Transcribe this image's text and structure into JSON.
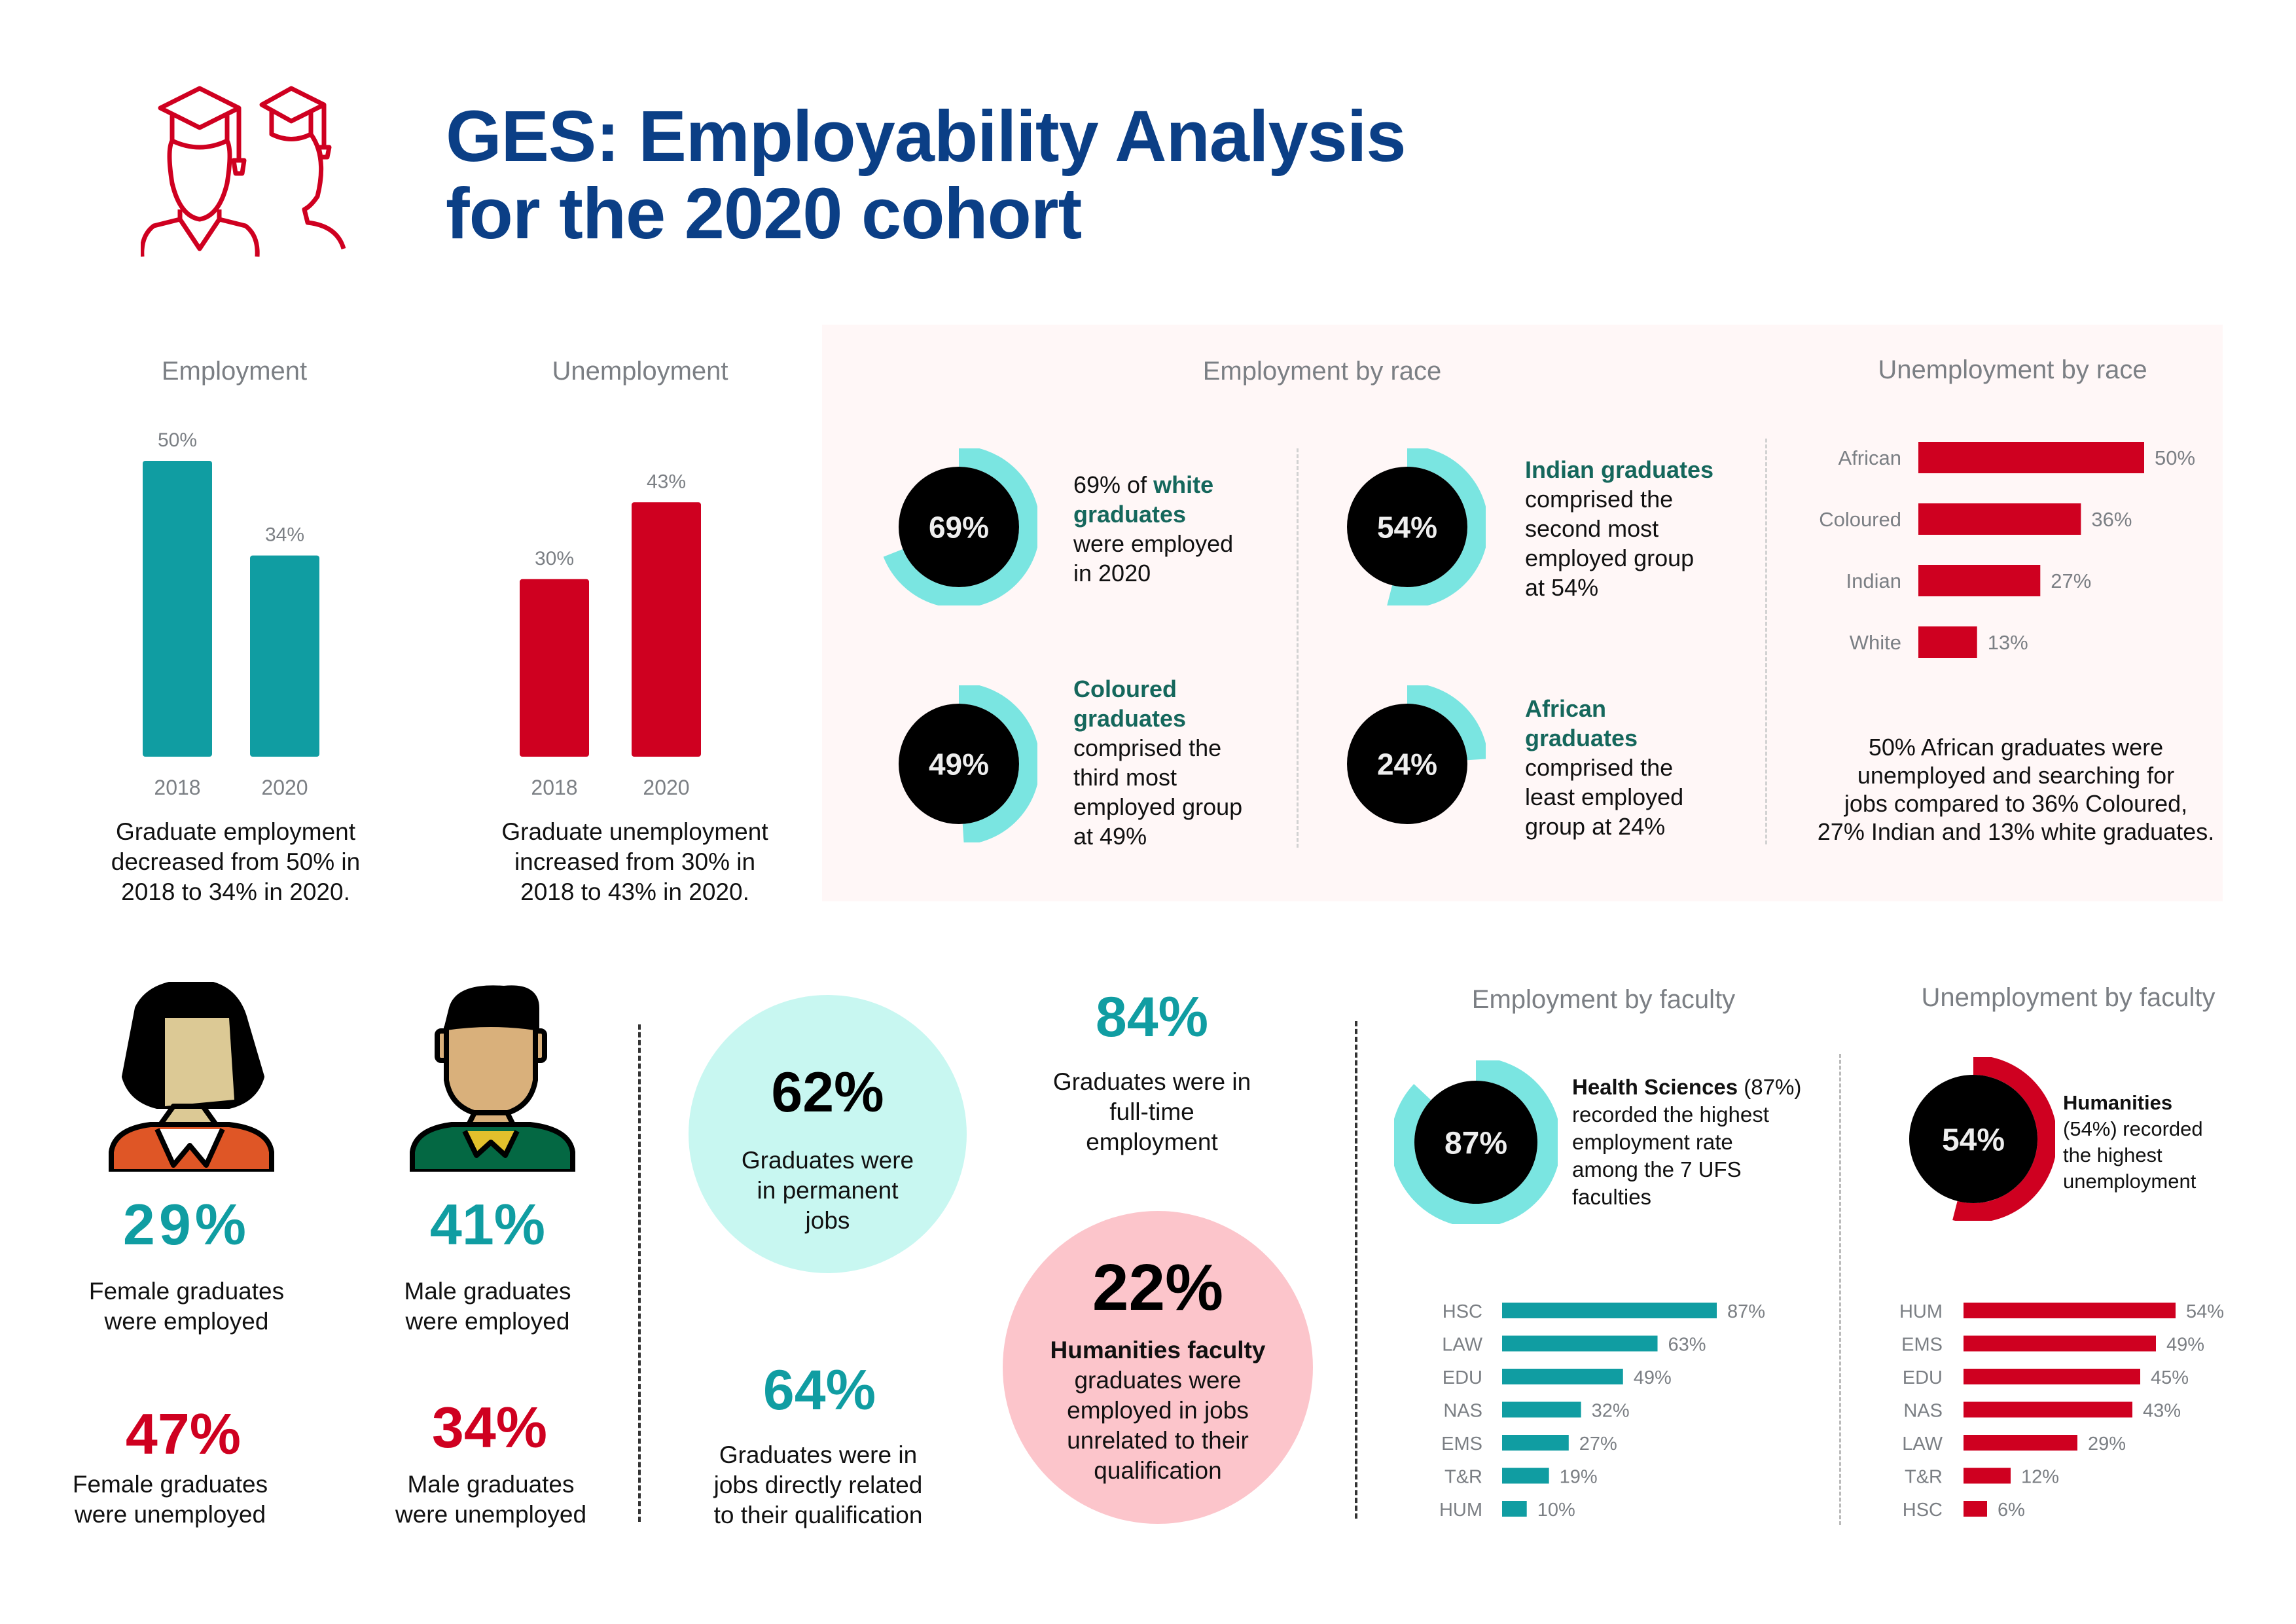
{
  "header": {
    "title_line1": "GES: Employability Analysis",
    "title_line2": "for the 2020 cohort",
    "icon": "graduates-icon",
    "colors": {
      "title": "#0b3f86",
      "teal": "#109da2",
      "red": "#cf0020",
      "ring_teal": "#7ae5e1",
      "panel_bg": "#fff7f7"
    }
  },
  "employment": {
    "heading": "Employment",
    "description_lines": [
      "Graduate employment",
      "decreased from 50% in",
      "2018 to 34% in 2020."
    ]
  },
  "unemployment": {
    "heading": "Unemployment",
    "description_lines": [
      "Graduate unemployment",
      "increased from 30% in",
      "2018 to 43% in 2020."
    ]
  },
  "employment_by_race": {
    "heading": "Employment by race",
    "items": [
      {
        "pct_label": "69%",
        "value": 69,
        "lines": [
          {
            "pre": "69% of ",
            "bold": "white"
          },
          {
            "bold": "graduates"
          },
          {
            "pre": "were employed"
          },
          {
            "pre": "in 2020"
          }
        ]
      },
      {
        "pct_label": "54%",
        "value": 54,
        "lines": [
          {
            "bold": "Indian graduates"
          },
          {
            "pre": "comprised the"
          },
          {
            "pre": "second most"
          },
          {
            "pre": "employed group"
          },
          {
            "pre": "at 54%"
          }
        ]
      },
      {
        "pct_label": "49%",
        "value": 49,
        "lines": [
          {
            "bold": "Coloured"
          },
          {
            "bold": "graduates"
          },
          {
            "pre": "comprised the"
          },
          {
            "pre": "third most"
          },
          {
            "pre": "employed group"
          },
          {
            "pre": "at 49%"
          }
        ]
      },
      {
        "pct_label": "24%",
        "value": 24,
        "lines": [
          {
            "bold": "African"
          },
          {
            "bold": "graduates"
          },
          {
            "pre": "comprised the"
          },
          {
            "pre": "least employed"
          },
          {
            "pre": "group at 24%"
          }
        ]
      }
    ]
  },
  "unemployment_by_race": {
    "heading": "Unemployment by race",
    "description_lines": [
      "50% African graduates were",
      "unemployed and searching for",
      "jobs compared to 36% Coloured,",
      "27% Indian and 13% white graduates."
    ]
  },
  "gender": {
    "female_employed": {
      "pct": "29%",
      "lines": [
        "Female graduates",
        "were employed"
      ]
    },
    "male_employed": {
      "pct": "41%",
      "lines": [
        "Male graduates",
        "were employed"
      ]
    },
    "female_unemployed": {
      "pct": "47%",
      "lines": [
        "Female graduates",
        "were unemployed"
      ]
    },
    "male_unemployed": {
      "pct": "34%",
      "lines": [
        "Male graduates",
        "were unemployed"
      ]
    }
  },
  "job_stats": {
    "permanent": {
      "pct": "62%",
      "lines": [
        "Graduates were",
        "in permanent",
        "jobs"
      ]
    },
    "full_time": {
      "pct": "84%",
      "lines": [
        "Graduates were in",
        "full-time",
        "employment"
      ]
    },
    "related": {
      "pct": "64%",
      "lines": [
        "Graduates were in",
        "jobs directly related",
        "to their qualification"
      ]
    },
    "humanities_unrelated": {
      "pct": "22%",
      "bold_line": "Humanities faculty",
      "lines": [
        "graduates were",
        "employed in jobs",
        "unrelated to their",
        "qualification"
      ]
    }
  },
  "employment_by_faculty": {
    "heading": "Employment by faculty",
    "ring": {
      "pct_label": "87%",
      "value": 87
    },
    "text_bold": "Health Sciences",
    "text_lines": [
      " (87%)",
      "recorded the highest",
      "employment rate",
      "among the 7 UFS",
      "faculties"
    ]
  },
  "unemployment_by_faculty": {
    "heading": "Unemployment by faculty",
    "ring": {
      "pct_label": "54%",
      "value": 54
    },
    "text_bold": "Humanities",
    "text_lines": [
      "(54%) recorded",
      "the highest",
      "unemployment"
    ]
  },
  "chart_data": [
    {
      "type": "bar",
      "title": "Employment",
      "categories": [
        "2018",
        "2020"
      ],
      "values": [
        50,
        34
      ],
      "value_labels": [
        "50%",
        "34%"
      ],
      "xlabel": "",
      "ylabel": "",
      "ylim": [
        0,
        50
      ],
      "color": "#109da2"
    },
    {
      "type": "bar",
      "title": "Unemployment",
      "categories": [
        "2018",
        "2020"
      ],
      "values": [
        30,
        43
      ],
      "value_labels": [
        "30%",
        "43%"
      ],
      "xlabel": "",
      "ylabel": "",
      "ylim": [
        0,
        43
      ],
      "color": "#cf0020"
    },
    {
      "type": "bar",
      "orientation": "horizontal",
      "title": "Unemployment by race",
      "categories": [
        "African",
        "Coloured",
        "Indian",
        "White"
      ],
      "values": [
        50,
        36,
        27,
        13
      ],
      "value_labels": [
        "50%",
        "36%",
        "27%",
        "13%"
      ],
      "color": "#cf0020"
    },
    {
      "type": "bar",
      "orientation": "horizontal",
      "title": "Employment by faculty",
      "categories": [
        "HSC",
        "LAW",
        "EDU",
        "NAS",
        "EMS",
        "T&R",
        "HUM"
      ],
      "values": [
        87,
        63,
        49,
        32,
        27,
        19,
        10
      ],
      "value_labels": [
        "87%",
        "63%",
        "49%",
        "32%",
        "27%",
        "19%",
        "10%"
      ],
      "color": "#109da2"
    },
    {
      "type": "bar",
      "orientation": "horizontal",
      "title": "Unemployment by faculty",
      "categories": [
        "HUM",
        "EMS",
        "EDU",
        "NAS",
        "LAW",
        "T&R",
        "HSC"
      ],
      "values": [
        54,
        49,
        45,
        43,
        29,
        12,
        6
      ],
      "value_labels": [
        "54%",
        "49%",
        "45%",
        "43%",
        "29%",
        "12%",
        "6%"
      ],
      "color": "#cf0020"
    },
    {
      "type": "pie",
      "title": "Employment by race (rings)",
      "categories": [
        "White",
        "Indian",
        "Coloured",
        "African"
      ],
      "values": [
        69,
        54,
        49,
        24
      ]
    }
  ]
}
